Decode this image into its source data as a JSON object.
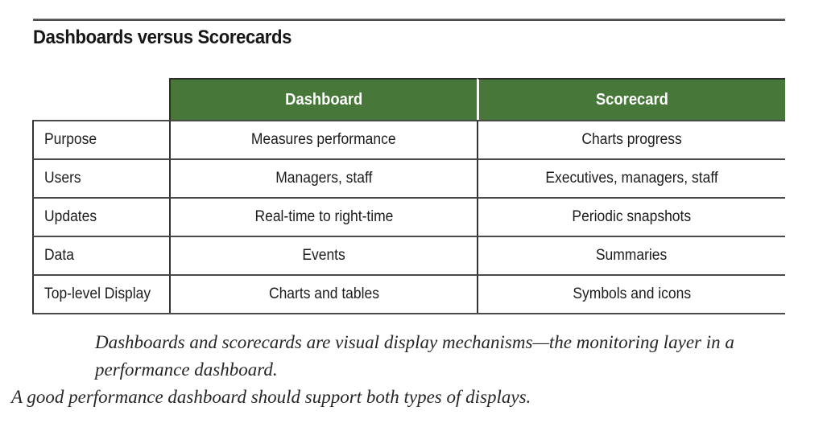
{
  "figure": {
    "title": "Dashboards versus Scorecards"
  },
  "table": {
    "columns": [
      "Dashboard",
      "Scorecard"
    ],
    "rows": [
      {
        "label": "Purpose",
        "dashboard": "Measures performance",
        "scorecard": "Charts progress"
      },
      {
        "label": "Users",
        "dashboard": "Managers, staff",
        "scorecard": "Executives, managers, staff"
      },
      {
        "label": "Updates",
        "dashboard": "Real-time to right-time",
        "scorecard": "Periodic snapshots"
      },
      {
        "label": "Data",
        "dashboard": "Events",
        "scorecard": "Summaries"
      },
      {
        "label": "Top-level Display",
        "dashboard": "Charts and tables",
        "scorecard": "Symbols and icons"
      }
    ]
  },
  "caption": {
    "line1": "Dashboards and scorecards are visual display mechanisms—the monitoring layer in a performance dashboard.",
    "line2": "A good performance dashboard should support both types of displays."
  },
  "colors": {
    "header_green": "#47783a",
    "header_text": "#ffffff",
    "body_text": "#1c1c1c",
    "border_dark": "#333333",
    "row_separator": "#4a4a4a",
    "top_rule": "#4c4c4c"
  }
}
